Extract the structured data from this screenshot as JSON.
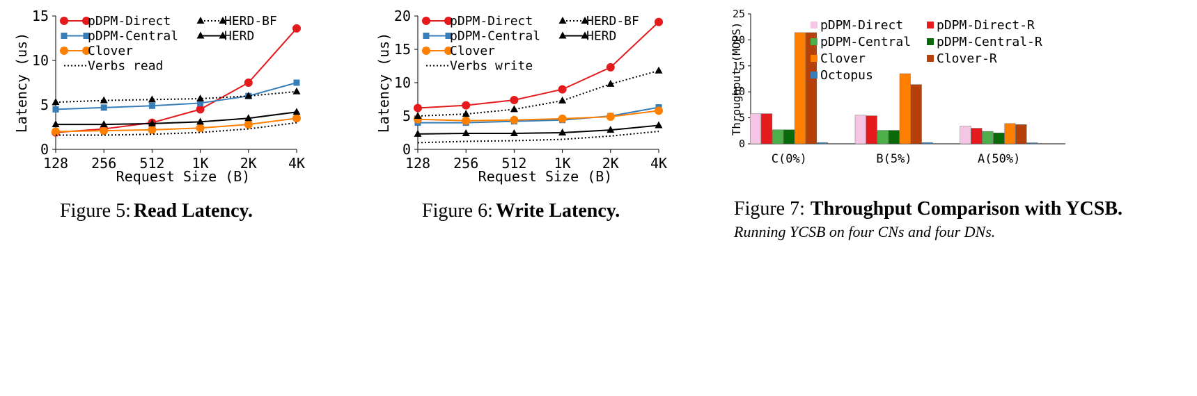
{
  "colors": {
    "pdpm_direct": "#e41a1c",
    "pdpm_central": "#377eb8",
    "clover": "#ff7f00",
    "black": "#000000",
    "pdpm_direct_bar": "#f4c6e3",
    "pdpm_direct_r_bar": "#e41a1c",
    "pdpm_central_bar": "#4daf4a",
    "pdpm_central_r_bar": "#0a6a0a",
    "clover_bar": "#ff7f00",
    "clover_r_bar": "#b5400a",
    "octopus_bar": "#377eb8"
  },
  "captions": {
    "fig5": {
      "num": "Figure 5:",
      "title": "Read Latency."
    },
    "fig6": {
      "num": "Figure 6:",
      "title": "Write Latency."
    },
    "fig7": {
      "num": "Figure 7:",
      "title": "Throughput Comparison with YCSB.",
      "sub": "Running YCSB on four CNs and four DNs."
    }
  },
  "chart_data": [
    {
      "type": "line",
      "categories": [
        "128",
        "256",
        "512",
        "1K",
        "2K",
        "4K"
      ],
      "xlabel": "Request Size (B)",
      "ylabel": "Latency (us)",
      "ylim": [
        0,
        15
      ],
      "yticks": [
        0,
        5,
        10,
        15
      ],
      "legend_position": "top-left",
      "series": [
        {
          "name": "pDPM-Direct",
          "values": [
            1.9,
            2.3,
            3.0,
            4.5,
            7.5,
            13.6
          ],
          "color": "#e41a1c",
          "marker": "circle",
          "dash": "solid"
        },
        {
          "name": "pDPM-Central",
          "values": [
            4.5,
            4.7,
            4.9,
            5.2,
            6.0,
            7.5
          ],
          "color": "#377eb8",
          "marker": "square",
          "dash": "solid"
        },
        {
          "name": "Clover",
          "values": [
            2.0,
            2.1,
            2.2,
            2.4,
            2.8,
            3.5
          ],
          "color": "#ff7f00",
          "marker": "circle",
          "dash": "solid"
        },
        {
          "name": "Verbs read",
          "values": [
            1.6,
            1.6,
            1.7,
            1.9,
            2.3,
            3.0
          ],
          "color": "#000000",
          "marker": "none",
          "dash": "dotted"
        },
        {
          "name": "HERD-BF",
          "values": [
            5.3,
            5.5,
            5.6,
            5.7,
            6.0,
            6.5
          ],
          "color": "#000000",
          "marker": "triangle",
          "dash": "dotted"
        },
        {
          "name": "HERD",
          "values": [
            2.8,
            2.8,
            2.9,
            3.1,
            3.5,
            4.2
          ],
          "color": "#000000",
          "marker": "triangle",
          "dash": "solid"
        }
      ]
    },
    {
      "type": "line",
      "categories": [
        "128",
        "256",
        "512",
        "1K",
        "2K",
        "4K"
      ],
      "xlabel": "Request Size (B)",
      "ylabel": "Latency (us)",
      "ylim": [
        0,
        20
      ],
      "yticks": [
        0,
        5,
        10,
        15,
        20
      ],
      "legend_position": "top-left",
      "series": [
        {
          "name": "pDPM-Direct",
          "values": [
            6.2,
            6.6,
            7.4,
            9.0,
            12.3,
            19.1
          ],
          "color": "#e41a1c",
          "marker": "circle",
          "dash": "solid"
        },
        {
          "name": "pDPM-Central",
          "values": [
            4.0,
            4.0,
            4.2,
            4.4,
            5.0,
            6.3
          ],
          "color": "#377eb8",
          "marker": "square",
          "dash": "solid"
        },
        {
          "name": "Clover",
          "values": [
            4.5,
            4.3,
            4.4,
            4.6,
            4.9,
            5.8
          ],
          "color": "#ff7f00",
          "marker": "circle",
          "dash": "solid"
        },
        {
          "name": "Verbs write",
          "values": [
            1.0,
            1.2,
            1.3,
            1.5,
            2.0,
            2.7
          ],
          "color": "#000000",
          "marker": "none",
          "dash": "dotted"
        },
        {
          "name": "HERD-BF",
          "values": [
            5.0,
            5.3,
            6.0,
            7.3,
            9.8,
            11.8
          ],
          "color": "#000000",
          "marker": "triangle",
          "dash": "dotted"
        },
        {
          "name": "HERD",
          "values": [
            2.3,
            2.4,
            2.4,
            2.5,
            2.9,
            3.6
          ],
          "color": "#000000",
          "marker": "triangle",
          "dash": "solid"
        }
      ]
    },
    {
      "type": "bar",
      "categories": [
        "C(0%)",
        "B(5%)",
        "A(50%)"
      ],
      "ylabel": "Throughput (MOPS)",
      "ylim": [
        0,
        25
      ],
      "yticks": [
        0,
        5,
        10,
        15,
        20,
        25
      ],
      "legend_position": "top",
      "series": [
        {
          "name": "pDPM-Direct",
          "values": [
            5.8,
            5.5,
            3.4
          ],
          "color": "#f4c6e3"
        },
        {
          "name": "pDPM-Direct-R",
          "values": [
            5.8,
            5.4,
            3.0
          ],
          "color": "#e41a1c"
        },
        {
          "name": "pDPM-Central",
          "values": [
            2.7,
            2.6,
            2.4
          ],
          "color": "#4daf4a"
        },
        {
          "name": "pDPM-Central-R",
          "values": [
            2.7,
            2.6,
            2.1
          ],
          "color": "#0a6a0a"
        },
        {
          "name": "Clover",
          "values": [
            21.4,
            13.5,
            3.9
          ],
          "color": "#ff7f00"
        },
        {
          "name": "Clover-R",
          "values": [
            21.4,
            11.4,
            3.7
          ],
          "color": "#b5400a"
        },
        {
          "name": "Octopus",
          "values": [
            0.25,
            0.25,
            0.2
          ],
          "color": "#377eb8"
        }
      ]
    }
  ]
}
